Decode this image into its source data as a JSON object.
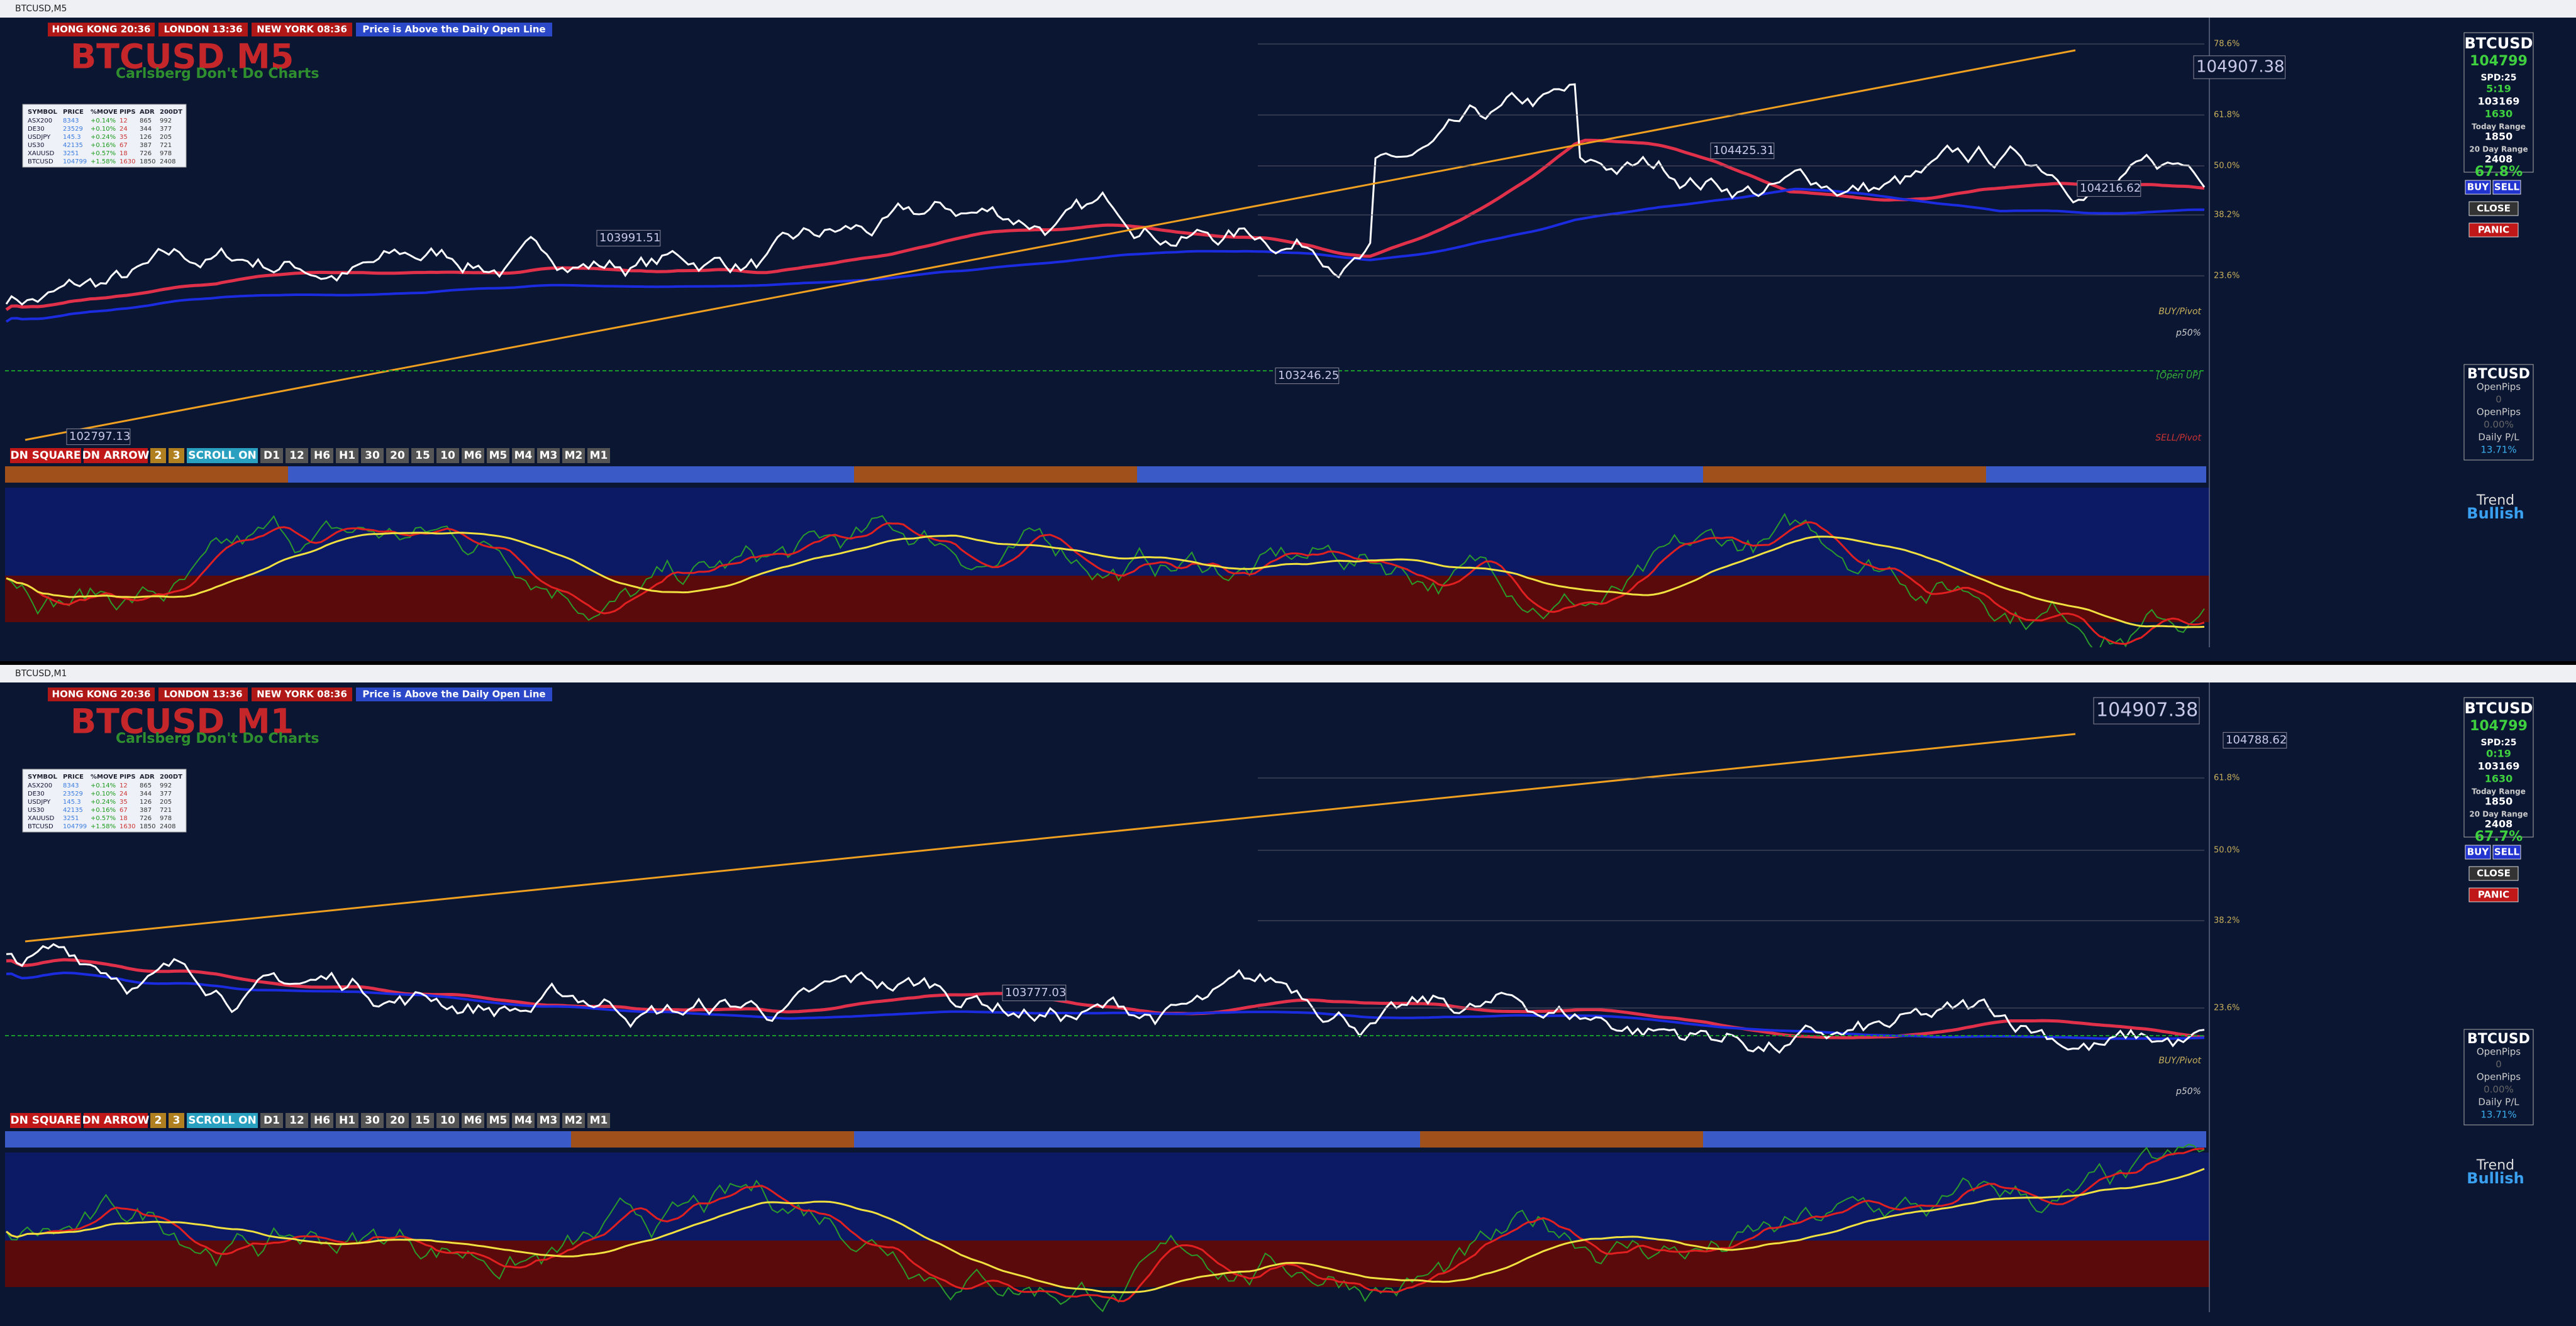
{
  "windows": [
    {
      "title": "BTCUSD,M5",
      "sessions": [
        "HONG KONG 20:36",
        "LONDON 13:36",
        "NEW YORK 08:36"
      ],
      "notice": "Price is Above the Daily Open Line",
      "symbol_title": "BTCUSD M5",
      "subtitle": "Carlsberg Don't Do Charts",
      "table": {
        "header": [
          "SYMBOL",
          "PRICE",
          "%MOVE",
          "PIPS",
          "ADR",
          "200DT"
        ],
        "rows": [
          [
            "ASX200",
            "8343",
            "+0.14%",
            "12",
            "865",
            "992"
          ],
          [
            "DE30",
            "23529",
            "+0.10%",
            "24",
            "344",
            "377"
          ],
          [
            "USDJPY",
            "145.3",
            "+0.24%",
            "35",
            "126",
            "205"
          ],
          [
            "US30",
            "42135",
            "+0.16%",
            "67",
            "387",
            "721"
          ],
          [
            "XAUUSD",
            "3251",
            "+0.57%",
            "18",
            "726",
            "978"
          ],
          [
            "BTCUSD",
            "104799",
            "+1.58%",
            "1630",
            "1850",
            "2408"
          ]
        ]
      },
      "price_labels": [
        "104907.38",
        "104425.31",
        "104216.62",
        "103991.51",
        "102797.13",
        "103246.25"
      ],
      "levels": [
        "78.6%",
        "61.8%",
        "50.0%",
        "38.2%",
        "23.6%"
      ],
      "pivot_labels": [
        "BUY/Pivot",
        "p50%",
        "[Open UP]",
        "SELL/Pivot"
      ],
      "panel": {
        "symbol": "BTCUSD",
        "price": "104799",
        "spread": "SPD:25",
        "timer": "5:19",
        "daily_open": "103169",
        "pips": "1630",
        "today_range_label": "Today Range",
        "today_range": "1850",
        "adr_label": "20 Day Range",
        "adr": "2408",
        "pct": "67.8%"
      },
      "buttons": [
        "BUY",
        "SELL",
        "CLOSE",
        "PANIC"
      ],
      "pl": [
        "BTCUSD",
        "OpenPips",
        "0",
        "OpenPips",
        "0.00%",
        "Daily P/L",
        "13.71%"
      ],
      "toolbar": [
        "DN SQUARE",
        "DN ARROW",
        "2",
        "3",
        "SCROLL ON",
        "D1",
        "12",
        "H6",
        "H1",
        "30",
        "20",
        "15",
        "10",
        "M6",
        "M5",
        "M4",
        "M3",
        "M2",
        "M1"
      ],
      "trend": [
        "Trend",
        "Bullish"
      ]
    },
    {
      "title": "BTCUSD,M1",
      "sessions": [
        "HONG KONG 20:36",
        "LONDON 13:36",
        "NEW YORK 08:36"
      ],
      "notice": "Price is Above the Daily Open Line",
      "symbol_title": "BTCUSD M1",
      "subtitle": "Carlsberg Don't Do Charts",
      "table": {
        "header": [
          "SYMBOL",
          "PRICE",
          "%MOVE",
          "PIPS",
          "ADR",
          "200DT"
        ],
        "rows": [
          [
            "ASX200",
            "8343",
            "+0.14%",
            "12",
            "865",
            "992"
          ],
          [
            "DE30",
            "23529",
            "+0.10%",
            "24",
            "344",
            "377"
          ],
          [
            "USDJPY",
            "145.3",
            "+0.24%",
            "35",
            "126",
            "205"
          ],
          [
            "US30",
            "42135",
            "+0.16%",
            "67",
            "387",
            "721"
          ],
          [
            "XAUUSD",
            "3251",
            "+0.57%",
            "18",
            "726",
            "978"
          ],
          [
            "BTCUSD",
            "104799",
            "+1.58%",
            "1630",
            "1850",
            "2408"
          ]
        ]
      },
      "price_labels": [
        "104907.38",
        "103777.03",
        "104788.62"
      ],
      "levels": [
        "61.8%",
        "50.0%",
        "38.2%",
        "23.6%"
      ],
      "pivot_labels": [
        "BUY/Pivot",
        "p50%"
      ],
      "panel": {
        "symbol": "BTCUSD",
        "price": "104799",
        "spread": "SPD:25",
        "timer": "0:19",
        "daily_open": "103169",
        "pips": "1630",
        "today_range_label": "Today Range",
        "today_range": "1850",
        "adr_label": "20 Day Range",
        "adr": "2408",
        "pct": "67.7%"
      },
      "buttons": [
        "BUY",
        "SELL",
        "CLOSE",
        "PANIC"
      ],
      "pl": [
        "BTCUSD",
        "OpenPips",
        "0",
        "OpenPips",
        "0.00%",
        "Daily P/L",
        "13.71%"
      ],
      "toolbar": [
        "DN SQUARE",
        "DN ARROW",
        "2",
        "3",
        "SCROLL ON",
        "D1",
        "12",
        "H6",
        "H1",
        "30",
        "20",
        "15",
        "10",
        "M6",
        "M5",
        "M4",
        "M3",
        "M2",
        "M1"
      ],
      "trend": [
        "Trend",
        "Bullish"
      ]
    }
  ]
}
